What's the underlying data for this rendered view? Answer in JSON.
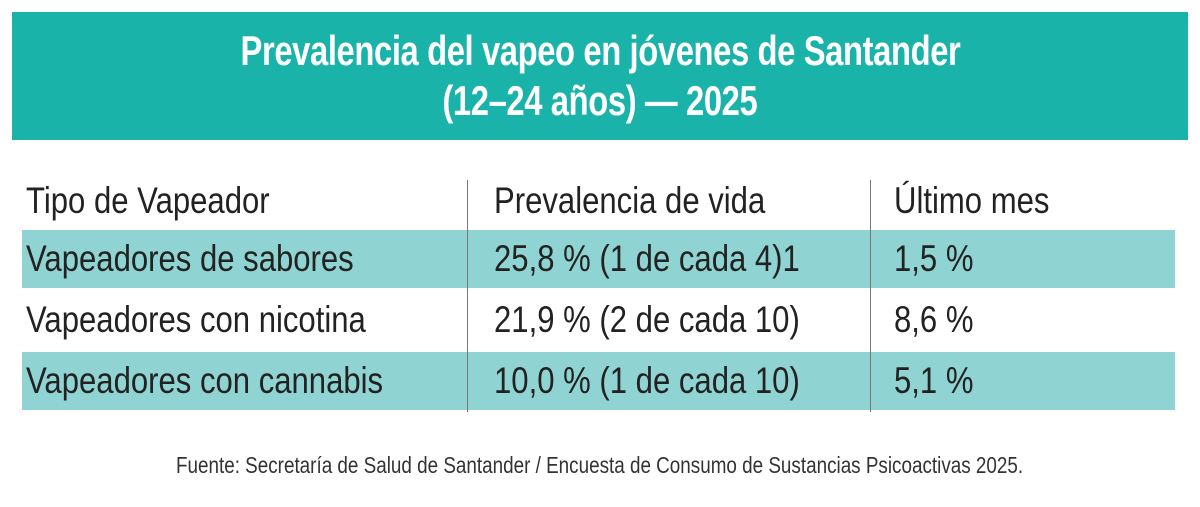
{
  "header": {
    "title_lines": [
      "Prevalencia del vapeo en jóvenes de Santander",
      "(12–24 años) — 2025"
    ]
  },
  "table": {
    "columns": [
      "Tipo de Vapeador",
      "Prevalencia de vida",
      "Último mes"
    ],
    "rows": [
      [
        "Vapeadores de sabores",
        "25,8 %  (1 de cada 4)1",
        "1,5 %"
      ],
      [
        "Vapeadores con nicotina",
        "21,9 %  (2 de cada 10)",
        "8,6 %"
      ],
      [
        "Vapeadores con cannabis",
        "10,0 %  (1 de cada 10)",
        "5,1 %"
      ]
    ]
  },
  "footer": {
    "source": "Fuente: Secretaría de Salud de Santander / Encuesta de Consumo de Sustancias Psicoactivas 2025."
  }
}
